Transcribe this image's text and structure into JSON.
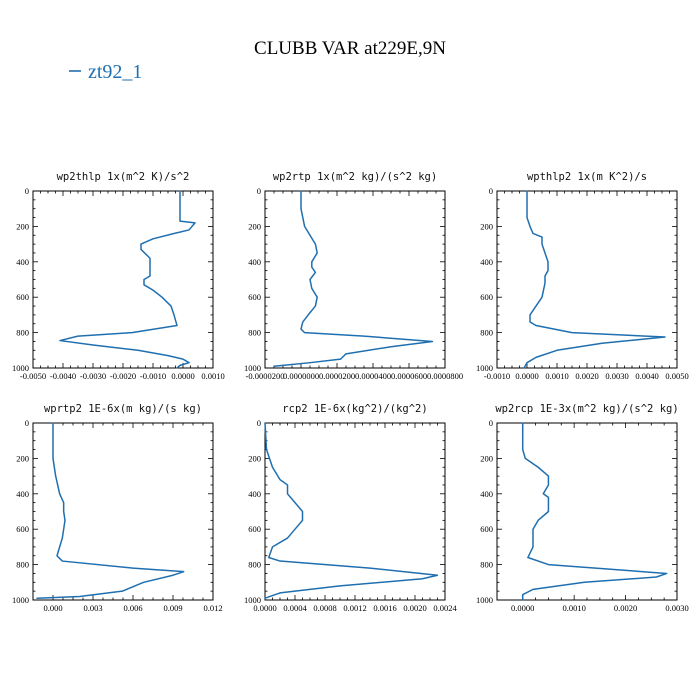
{
  "figure": {
    "title": "CLUBB VAR at229E,9N",
    "legend": [
      {
        "label": "zt92_1",
        "color": "#1f6fb0"
      }
    ]
  },
  "chart_data": [
    {
      "type": "line",
      "title": "wp2thlp  1x(m^2 K)/s^2",
      "xlim": [
        -0.005,
        0.001
      ],
      "ylim": [
        1000,
        0
      ],
      "xticks": [
        -0.005,
        -0.004,
        -0.003,
        -0.002,
        -0.001,
        0.0,
        0.001
      ],
      "xtick_labels": [
        "-0.0050",
        "-0.0040",
        "-0.0030",
        "-0.0020",
        "-0.0010",
        "0.0000",
        "0.0010"
      ],
      "yticks": [
        0,
        200,
        400,
        600,
        800,
        1000
      ],
      "ytick_labels": [
        "0",
        "200",
        "400",
        "600",
        "800",
        "1000"
      ],
      "series": [
        {
          "name": "zt92_1",
          "x": [
            -0.0001,
            -0.0001,
            -0.0001,
            -0.0001,
            0.0004,
            0.0002,
            -0.0003,
            -0.001,
            -0.0014,
            -0.0014,
            -0.0011,
            -0.0011,
            -0.0011,
            -0.0011,
            -0.0013,
            -0.0013,
            -0.001,
            -0.0007,
            -0.0004,
            -0.0003,
            -0.0002,
            -0.0017,
            -0.0035,
            -0.0041,
            -0.003,
            -0.0015,
            -0.0005,
            0.0,
            0.0002,
            -0.0001,
            -0.0002
          ],
          "y": [
            0,
            100,
            150,
            170,
            180,
            220,
            240,
            270,
            300,
            330,
            380,
            420,
            450,
            480,
            500,
            530,
            560,
            600,
            650,
            700,
            760,
            800,
            820,
            845,
            870,
            900,
            930,
            950,
            970,
            985,
            1000
          ]
        }
      ]
    },
    {
      "type": "line",
      "title": "wp2rtp  1x(m^2 kg)/(s^2 kg)",
      "xlim": [
        -2e-05,
        8e-05
      ],
      "ylim": [
        1000,
        0
      ],
      "xticks": [
        -2e-05,
        0.0,
        2e-05,
        4e-05,
        6e-05,
        8e-05
      ],
      "xtick_labels": [
        "-0.0000200",
        "0.0000000",
        "0.0000200",
        "0.0000400",
        "0.0000600",
        "0.0000800"
      ],
      "yticks": [
        0,
        200,
        400,
        600,
        800,
        1000
      ],
      "ytick_labels": [
        "0",
        "200",
        "400",
        "600",
        "800",
        "1000"
      ],
      "series": [
        {
          "name": "zt92_1",
          "x": [
            0.0,
            0.0,
            2e-06,
            5e-06,
            8e-06,
            9e-06,
            6e-06,
            6e-06,
            8e-06,
            5e-06,
            6e-06,
            9e-06,
            8e-06,
            4e-06,
            1e-06,
            0.0,
            2e-06,
            3.5e-05,
            7.3e-05,
            5e-05,
            2.5e-05,
            2.2e-05,
            5e-06,
            -1.5e-05
          ],
          "y": [
            0,
            100,
            200,
            250,
            300,
            350,
            400,
            430,
            460,
            500,
            550,
            600,
            650,
            700,
            740,
            780,
            800,
            820,
            850,
            880,
            920,
            950,
            970,
            990
          ]
        }
      ]
    },
    {
      "type": "line",
      "title": "wpthlp2  1x(m K^2)/s",
      "xlim": [
        -0.001,
        0.005
      ],
      "ylim": [
        1000,
        0
      ],
      "xticks": [
        -0.001,
        0.0,
        0.001,
        0.002,
        0.003,
        0.004,
        0.005
      ],
      "xtick_labels": [
        "-0.0010",
        "0.0000",
        "0.0010",
        "0.0020",
        "0.0030",
        "0.0040",
        "0.0050"
      ],
      "yticks": [
        0,
        200,
        400,
        600,
        800,
        1000
      ],
      "ytick_labels": [
        "0",
        "200",
        "400",
        "600",
        "800",
        "1000"
      ],
      "series": [
        {
          "name": "zt92_1",
          "x": [
            0.0,
            0.0,
            0.0,
            0.0001,
            0.0002,
            0.0005,
            0.0005,
            0.0006,
            0.0007,
            0.0007,
            0.0006,
            0.0006,
            0.0005,
            0.0003,
            0.0001,
            0.0001,
            0.0003,
            0.0015,
            0.0046,
            0.0025,
            0.001,
            0.0003,
            0.0,
            -0.0001
          ],
          "y": [
            0,
            100,
            150,
            200,
            240,
            260,
            300,
            350,
            400,
            450,
            480,
            520,
            600,
            650,
            700,
            740,
            760,
            800,
            825,
            860,
            900,
            940,
            970,
            1000
          ]
        }
      ]
    },
    {
      "type": "line",
      "title": "wprtp2  1E-6x(m kg)/(s kg)",
      "xlim": [
        -0.0015,
        0.012
      ],
      "ylim": [
        1000,
        0
      ],
      "xticks": [
        0.0,
        0.003,
        0.006,
        0.009,
        0.012
      ],
      "xtick_labels": [
        "0.000",
        "0.003",
        "0.006",
        "0.009",
        "0.012"
      ],
      "yticks": [
        0,
        200,
        400,
        600,
        800,
        1000
      ],
      "ytick_labels": [
        "0",
        "200",
        "400",
        "600",
        "800",
        "1000"
      ],
      "series": [
        {
          "name": "zt92_1",
          "x": [
            0.0,
            0.0,
            0.0,
            0.0002,
            0.0005,
            0.0008,
            0.0008,
            0.0009,
            0.0008,
            0.0007,
            0.0005,
            0.0003,
            0.0007,
            0.006,
            0.0098,
            0.009,
            0.0068,
            0.0052,
            0.002,
            -0.0012
          ],
          "y": [
            0,
            100,
            200,
            300,
            400,
            450,
            500,
            550,
            600,
            650,
            700,
            750,
            780,
            820,
            840,
            860,
            900,
            950,
            980,
            990
          ]
        }
      ]
    },
    {
      "type": "line",
      "title": "rcp2  1E-6x(kg^2)/(kg^2)",
      "xlim": [
        0.0,
        0.0024
      ],
      "ylim": [
        1000,
        0
      ],
      "xticks": [
        0.0,
        0.0004,
        0.0008,
        0.0012,
        0.0016,
        0.002,
        0.0024
      ],
      "xtick_labels": [
        "0.0000",
        "0.0004",
        "0.0008",
        "0.0012",
        "0.0016",
        "0.0020",
        "0.0024"
      ],
      "yticks": [
        0,
        200,
        400,
        600,
        800,
        1000
      ],
      "ytick_labels": [
        "0",
        "200",
        "400",
        "600",
        "800",
        "1000"
      ],
      "series": [
        {
          "name": "zt92_1",
          "x": [
            0.0,
            2e-05,
            0.0001,
            0.0002,
            0.0003,
            0.0003,
            0.0004,
            0.0005,
            0.0005,
            0.0004,
            0.0003,
            0.0001,
            5e-05,
            0.0002,
            0.0014,
            0.0023,
            0.0021,
            0.001,
            0.0002,
            0.0
          ],
          "y": [
            0,
            150,
            250,
            320,
            350,
            400,
            450,
            500,
            550,
            600,
            650,
            700,
            760,
            780,
            820,
            860,
            880,
            920,
            960,
            990
          ]
        }
      ]
    },
    {
      "type": "line",
      "title": "wp2rcp  1E-3x(m^2 kg)/(s^2 kg)",
      "xlim": [
        -0.0005,
        0.003
      ],
      "ylim": [
        1000,
        0
      ],
      "xticks": [
        0.0,
        0.001,
        0.002,
        0.003
      ],
      "xtick_labels": [
        "0.0000",
        "0.0010",
        "0.0020",
        "0.0030"
      ],
      "yticks": [
        0,
        200,
        400,
        600,
        800,
        1000
      ],
      "ytick_labels": [
        "0",
        "200",
        "400",
        "600",
        "800",
        "1000"
      ],
      "series": [
        {
          "name": "zt92_1",
          "x": [
            0.0,
            0.0,
            5e-05,
            0.0003,
            0.0005,
            0.0005,
            0.0004,
            0.0005,
            0.0005,
            0.0003,
            0.0002,
            0.0002,
            0.0001,
            0.0005,
            0.0028,
            0.0026,
            0.0012,
            0.0002,
            0.0,
            0.0
          ],
          "y": [
            0,
            150,
            200,
            250,
            300,
            350,
            400,
            420,
            500,
            550,
            600,
            700,
            760,
            800,
            850,
            870,
            900,
            940,
            970,
            1000
          ]
        }
      ]
    }
  ]
}
